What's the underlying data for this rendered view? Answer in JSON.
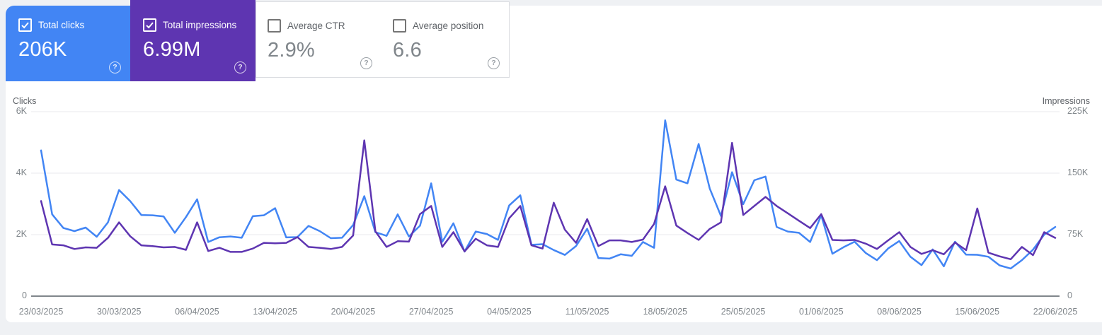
{
  "ui": {
    "help_glyph": "?"
  },
  "cards": [
    {
      "id": "total-clicks",
      "label": "Total clicks",
      "value": "206K",
      "selected": true,
      "bg": "#4285f4"
    },
    {
      "id": "total-impressions",
      "label": "Total impressions",
      "value": "6.99M",
      "selected": true,
      "bg": "#5e35b1"
    },
    {
      "id": "average-ctr",
      "label": "Average CTR",
      "value": "2.9%",
      "selected": false,
      "bg": "#ffffff"
    },
    {
      "id": "average-position",
      "label": "Average position",
      "value": "6.6",
      "selected": false,
      "bg": "#ffffff"
    }
  ],
  "chart_data": {
    "type": "line",
    "grid": true,
    "left_axis": {
      "label": "Clicks",
      "ticks": [
        "6K",
        "4K",
        "2K",
        "0"
      ],
      "max": 6000
    },
    "right_axis": {
      "label": "Impressions",
      "ticks": [
        "225K",
        "150K",
        "75K",
        "0"
      ],
      "max": 225000
    },
    "x_tick_labels": [
      "23/03/2025",
      "30/03/2025",
      "06/04/2025",
      "13/04/2025",
      "20/04/2025",
      "27/04/2025",
      "04/05/2025",
      "11/05/2025",
      "18/05/2025",
      "25/05/2025",
      "01/06/2025",
      "08/06/2025",
      "15/06/2025",
      "22/06/2025"
    ],
    "dates": [
      "23/03/2025",
      "24/03/2025",
      "25/03/2025",
      "26/03/2025",
      "27/03/2025",
      "28/03/2025",
      "29/03/2025",
      "30/03/2025",
      "31/03/2025",
      "01/04/2025",
      "02/04/2025",
      "03/04/2025",
      "04/04/2025",
      "05/04/2025",
      "06/04/2025",
      "07/04/2025",
      "08/04/2025",
      "09/04/2025",
      "10/04/2025",
      "11/04/2025",
      "12/04/2025",
      "13/04/2025",
      "14/04/2025",
      "15/04/2025",
      "16/04/2025",
      "17/04/2025",
      "18/04/2025",
      "19/04/2025",
      "20/04/2025",
      "21/04/2025",
      "22/04/2025",
      "23/04/2025",
      "24/04/2025",
      "25/04/2025",
      "26/04/2025",
      "27/04/2025",
      "28/04/2025",
      "29/04/2025",
      "30/04/2025",
      "01/05/2025",
      "02/05/2025",
      "03/05/2025",
      "04/05/2025",
      "05/05/2025",
      "06/05/2025",
      "07/05/2025",
      "08/05/2025",
      "09/05/2025",
      "10/05/2025",
      "11/05/2025",
      "12/05/2025",
      "13/05/2025",
      "14/05/2025",
      "15/05/2025",
      "16/05/2025",
      "17/05/2025",
      "18/05/2025",
      "19/05/2025",
      "20/05/2025",
      "21/05/2025",
      "22/05/2025",
      "23/05/2025",
      "24/05/2025",
      "25/05/2025",
      "26/05/2025",
      "27/05/2025",
      "28/05/2025",
      "29/05/2025",
      "30/05/2025",
      "31/05/2025",
      "01/06/2025",
      "02/06/2025",
      "03/06/2025",
      "04/06/2025",
      "05/06/2025",
      "06/06/2025",
      "07/06/2025",
      "08/06/2025",
      "09/06/2025",
      "10/06/2025",
      "11/06/2025",
      "12/06/2025",
      "13/06/2025",
      "14/06/2025",
      "15/06/2025",
      "16/06/2025",
      "17/06/2025",
      "18/06/2025",
      "19/06/2025",
      "20/06/2025",
      "21/06/2025",
      "22/06/2025"
    ],
    "series": [
      {
        "name": "Total clicks",
        "axis": "left",
        "color": "#4285f4",
        "values": [
          4740,
          2660,
          2215,
          2115,
          2230,
          1930,
          2400,
          3450,
          3090,
          2640,
          2630,
          2590,
          2060,
          2570,
          3150,
          1760,
          1915,
          1940,
          1900,
          2600,
          2630,
          2860,
          1910,
          1920,
          2285,
          2115,
          1885,
          1900,
          2310,
          3250,
          2080,
          1960,
          2660,
          1940,
          2290,
          3670,
          1770,
          2370,
          1450,
          2100,
          2020,
          1830,
          2950,
          3280,
          1670,
          1690,
          1500,
          1340,
          1630,
          2190,
          1240,
          1220,
          1360,
          1310,
          1760,
          1570,
          5720,
          3790,
          3670,
          4950,
          3500,
          2610,
          4030,
          2990,
          3770,
          3890,
          2250,
          2100,
          2060,
          1760,
          2630,
          1380,
          1590,
          1770,
          1400,
          1170,
          1550,
          1790,
          1280,
          1010,
          1520,
          970,
          1770,
          1350,
          1345,
          1280,
          1000,
          900,
          1170,
          1510,
          2000,
          2250
        ]
      },
      {
        "name": "Total impressions",
        "axis": "right",
        "color": "#5e35b1",
        "values": [
          116000,
          63000,
          62000,
          57500,
          59500,
          59000,
          71000,
          90000,
          73000,
          62000,
          61000,
          59500,
          60000,
          56500,
          90000,
          55000,
          59000,
          54000,
          54000,
          58000,
          65000,
          64500,
          65000,
          72000,
          60000,
          59000,
          57500,
          60000,
          74000,
          190000,
          79000,
          60000,
          67000,
          66500,
          100000,
          110000,
          60000,
          78000,
          54500,
          70000,
          62000,
          60000,
          95000,
          110000,
          62000,
          58000,
          114000,
          81000,
          65000,
          94000,
          61000,
          68000,
          68000,
          66000,
          69000,
          88000,
          134000,
          86000,
          77000,
          68500,
          82000,
          90000,
          187000,
          99000,
          110000,
          121000,
          110000,
          101000,
          92000,
          83000,
          100000,
          68500,
          68000,
          68500,
          64000,
          57500,
          68000,
          78000,
          60000,
          51500,
          56000,
          51000,
          65500,
          56000,
          107000,
          53000,
          48500,
          45000,
          60000,
          50000,
          78000,
          71000
        ]
      }
    ]
  }
}
